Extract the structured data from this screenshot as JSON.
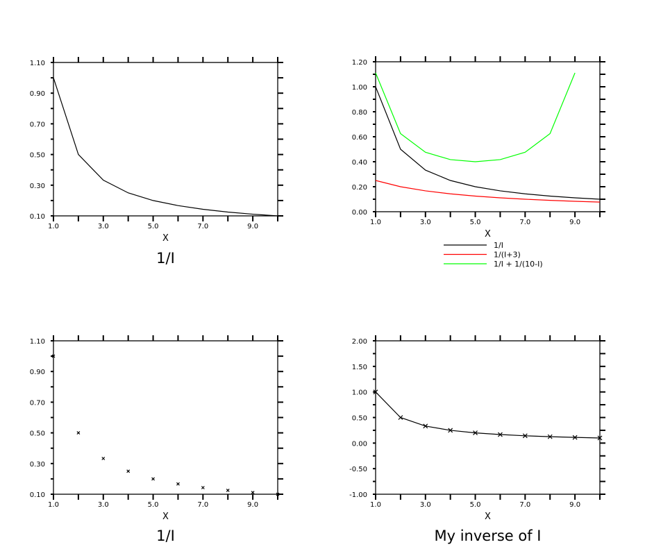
{
  "chart_data": [
    {
      "type": "line",
      "title": "1/I",
      "xlabel": "X",
      "xlim": [
        1,
        10
      ],
      "ylim": [
        0.1,
        1.1
      ],
      "xticks": [
        "1.0",
        "3.0",
        "5.0",
        "7.0",
        "9.0"
      ],
      "yticks": [
        "0.10",
        "0.30",
        "0.50",
        "0.70",
        "0.90",
        "1.10"
      ],
      "x": [
        1,
        2,
        3,
        4,
        5,
        6,
        7,
        8,
        9,
        10
      ],
      "series": [
        {
          "name": "1/I",
          "color": "#000000",
          "marker": "none",
          "values": [
            1.0,
            0.5,
            0.333,
            0.25,
            0.2,
            0.167,
            0.143,
            0.125,
            0.111,
            0.1
          ]
        }
      ]
    },
    {
      "type": "line",
      "title": "",
      "xlabel": "X",
      "xlim": [
        1,
        10
      ],
      "ylim": [
        0.0,
        1.2
      ],
      "xticks": [
        "1.0",
        "3.0",
        "5.0",
        "7.0",
        "9.0"
      ],
      "yticks": [
        "0.00",
        "0.20",
        "0.40",
        "0.60",
        "0.80",
        "1.00",
        "1.20"
      ],
      "x": [
        1,
        2,
        3,
        4,
        5,
        6,
        7,
        8,
        9,
        10
      ],
      "legend_position": "bottom",
      "series": [
        {
          "name": "1/I",
          "color": "#000000",
          "marker": "none",
          "values": [
            1.0,
            0.5,
            0.333,
            0.25,
            0.2,
            0.167,
            0.143,
            0.125,
            0.111,
            0.1
          ]
        },
        {
          "name": "1/(I+3)",
          "color": "#ff0000",
          "marker": "none",
          "values": [
            0.25,
            0.2,
            0.167,
            0.143,
            0.125,
            0.111,
            0.1,
            0.0909,
            0.0833,
            0.0769
          ]
        },
        {
          "name": "1/I + 1/(10-I)",
          "color": "#00ff00",
          "marker": "none",
          "values": [
            1.111,
            0.625,
            0.476,
            0.417,
            0.4,
            0.417,
            0.476,
            0.625,
            1.111,
            null
          ]
        }
      ]
    },
    {
      "type": "scatter",
      "title": "1/I",
      "xlabel": "X",
      "xlim": [
        1,
        10
      ],
      "ylim": [
        0.1,
        1.1
      ],
      "xticks": [
        "1.0",
        "3.0",
        "5.0",
        "7.0",
        "9.0"
      ],
      "yticks": [
        "0.10",
        "0.30",
        "0.50",
        "0.70",
        "0.90",
        "1.10"
      ],
      "x": [
        1,
        2,
        3,
        4,
        5,
        6,
        7,
        8,
        9,
        10
      ],
      "series": [
        {
          "name": "1/I",
          "color": "#000000",
          "marker": "x-small",
          "values": [
            1.0,
            0.5,
            0.333,
            0.25,
            0.2,
            0.167,
            0.143,
            0.125,
            0.111,
            0.1
          ]
        }
      ]
    },
    {
      "type": "line",
      "title": "My inverse of I",
      "xlabel": "X",
      "xlim": [
        1,
        10
      ],
      "ylim": [
        -1.0,
        2.0
      ],
      "xticks": [
        "1.0",
        "3.0",
        "5.0",
        "7.0",
        "9.0"
      ],
      "yticks": [
        "-1.00",
        "-0.50",
        "0.00",
        "0.50",
        "1.00",
        "1.50",
        "2.00"
      ],
      "x": [
        1,
        2,
        3,
        4,
        5,
        6,
        7,
        8,
        9,
        10
      ],
      "series": [
        {
          "name": "1/I",
          "color": "#000000",
          "marker": "x",
          "values": [
            1.0,
            0.5,
            0.333,
            0.25,
            0.2,
            0.167,
            0.143,
            0.125,
            0.111,
            0.1
          ]
        }
      ]
    }
  ]
}
